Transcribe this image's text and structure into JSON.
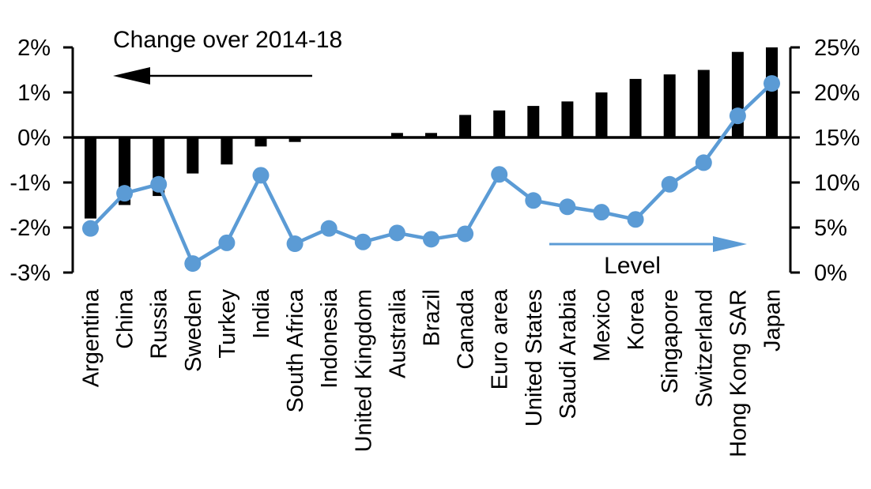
{
  "chart": {
    "background_color": "#ffffff",
    "bar_color": "#000000",
    "line_color": "#5b9bd5",
    "axis_color": "#000000",
    "left_series_title": "Change over 2014-18",
    "right_series_title": "Level"
  },
  "chart_data": {
    "type": "bar",
    "title": "",
    "xlabel": "",
    "ylabel": "",
    "grid": false,
    "legend_position": "in-plot arrow annotations",
    "categories": [
      "Argentina",
      "China",
      "Russia",
      "Sweden",
      "Turkey",
      "India",
      "South Africa",
      "Indonesia",
      "United Kingdom",
      "Australia",
      "Brazil",
      "Canada",
      "Euro area",
      "United States",
      "Saudi Arabia",
      "Mexico",
      "Korea",
      "Singapore",
      "Switzerland",
      "Hong Kong SAR",
      "Japan"
    ],
    "series": [
      {
        "name": "Change over 2014-18",
        "type": "bar",
        "axis": "left",
        "color": "#000000",
        "values": [
          -1.8,
          -1.5,
          -1.3,
          -0.8,
          -0.6,
          -0.2,
          -0.1,
          0.0,
          0.0,
          0.1,
          0.1,
          0.5,
          0.6,
          0.7,
          0.8,
          1.0,
          1.3,
          1.4,
          1.5,
          1.9,
          2.0
        ]
      },
      {
        "name": "Level",
        "type": "line",
        "axis": "right",
        "color": "#5b9bd5",
        "values": [
          4.9,
          8.8,
          9.8,
          1.0,
          3.3,
          10.8,
          3.2,
          4.9,
          3.4,
          4.4,
          3.7,
          4.3,
          10.9,
          8.0,
          7.3,
          6.7,
          5.9,
          9.8,
          12.2,
          17.4,
          21.0
        ]
      }
    ],
    "left_axis": {
      "min": -3,
      "max": 2,
      "tick_step": 1,
      "tick_labels": [
        "2%",
        "1%",
        "0%",
        "-1%",
        "-2%",
        "-3%"
      ]
    },
    "right_axis": {
      "min": 0,
      "max": 25,
      "tick_step": 5,
      "tick_labels": [
        "25%",
        "20%",
        "15%",
        "10%",
        "5%",
        "0%"
      ]
    },
    "annotations": [
      {
        "text": "Change over 2014-18",
        "arrow_direction": "left",
        "arrow_color": "#000000"
      },
      {
        "text": "Level",
        "arrow_direction": "right",
        "arrow_color": "#5b9bd5"
      }
    ]
  }
}
